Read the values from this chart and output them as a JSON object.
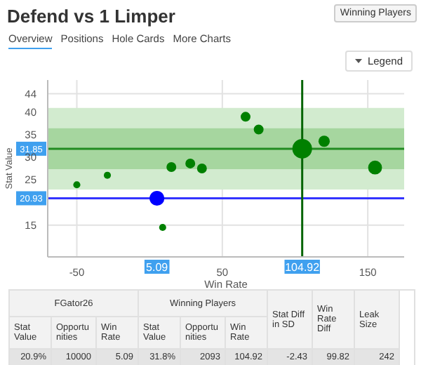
{
  "chart_data": [
    {
      "type": "bubble",
      "title": "Defend vs 1 Limper",
      "xlabel": "Win Rate",
      "ylabel": "Stat Value",
      "xlim": [
        -70,
        175
      ],
      "xticks": [
        -50,
        50,
        150
      ],
      "ylim": [
        8,
        47
      ],
      "yticks": [
        15,
        25,
        30,
        35,
        40,
        44
      ],
      "grid": true,
      "series": [
        {
          "color": "#008000",
          "x": [
            -50,
            -29,
            15,
            28,
            36,
            9,
            66,
            75,
            104.92,
            120,
            155
          ],
          "values": [
            23.9,
            26,
            27.8,
            28.6,
            27.5,
            14.5,
            38.9,
            36.1,
            31.85,
            33.5,
            27.7
          ],
          "sizes": [
            0.13,
            0.13,
            0.25,
            0.25,
            0.25,
            0.13,
            0.25,
            0.25,
            1,
            0.33,
            0.5
          ]
        },
        {
          "color": "#0000ff",
          "x": [
            5.09
          ],
          "values": [
            20.93
          ],
          "sizes": [
            0.57
          ]
        }
      ],
      "bands": [
        {
          "axis": "y",
          "from": 22.85,
          "to": 40.85,
          "color": "#d2ebcf"
        },
        {
          "axis": "y",
          "from": 27.35,
          "to": 36.35,
          "color": "#a6d69f"
        }
      ],
      "ref_lines": [
        {
          "axis": "y",
          "value": 31.85,
          "label": "31.85",
          "color": "#228b22"
        },
        {
          "axis": "y",
          "value": 20.93,
          "label": "20.93",
          "color": "#3333ff"
        },
        {
          "axis": "x",
          "value": 104.92,
          "label": "104.92",
          "color": "#006400"
        }
      ],
      "annotations": [
        "Winning Players",
        "Overview",
        "Positions",
        "Hole Cards",
        "More Charts",
        "Legend",
        {
          "text": "5.09",
          "x": 5.09
        }
      ]
    },
    {
      "type": "other",
      "annotations": [
        "FGator26",
        "Winning Players",
        "Stat Diff in SD",
        "Win Rate Diff",
        "Leak Size",
        "Stat Value",
        "Opportunities",
        "Win Rate",
        "Stat Value",
        "Opportunities",
        "Win Rate",
        "20.9%",
        "10000",
        "5.09",
        "31.8%",
        "2093",
        "104.92",
        "-2.43",
        "99.82",
        "242"
      ]
    }
  ]
}
